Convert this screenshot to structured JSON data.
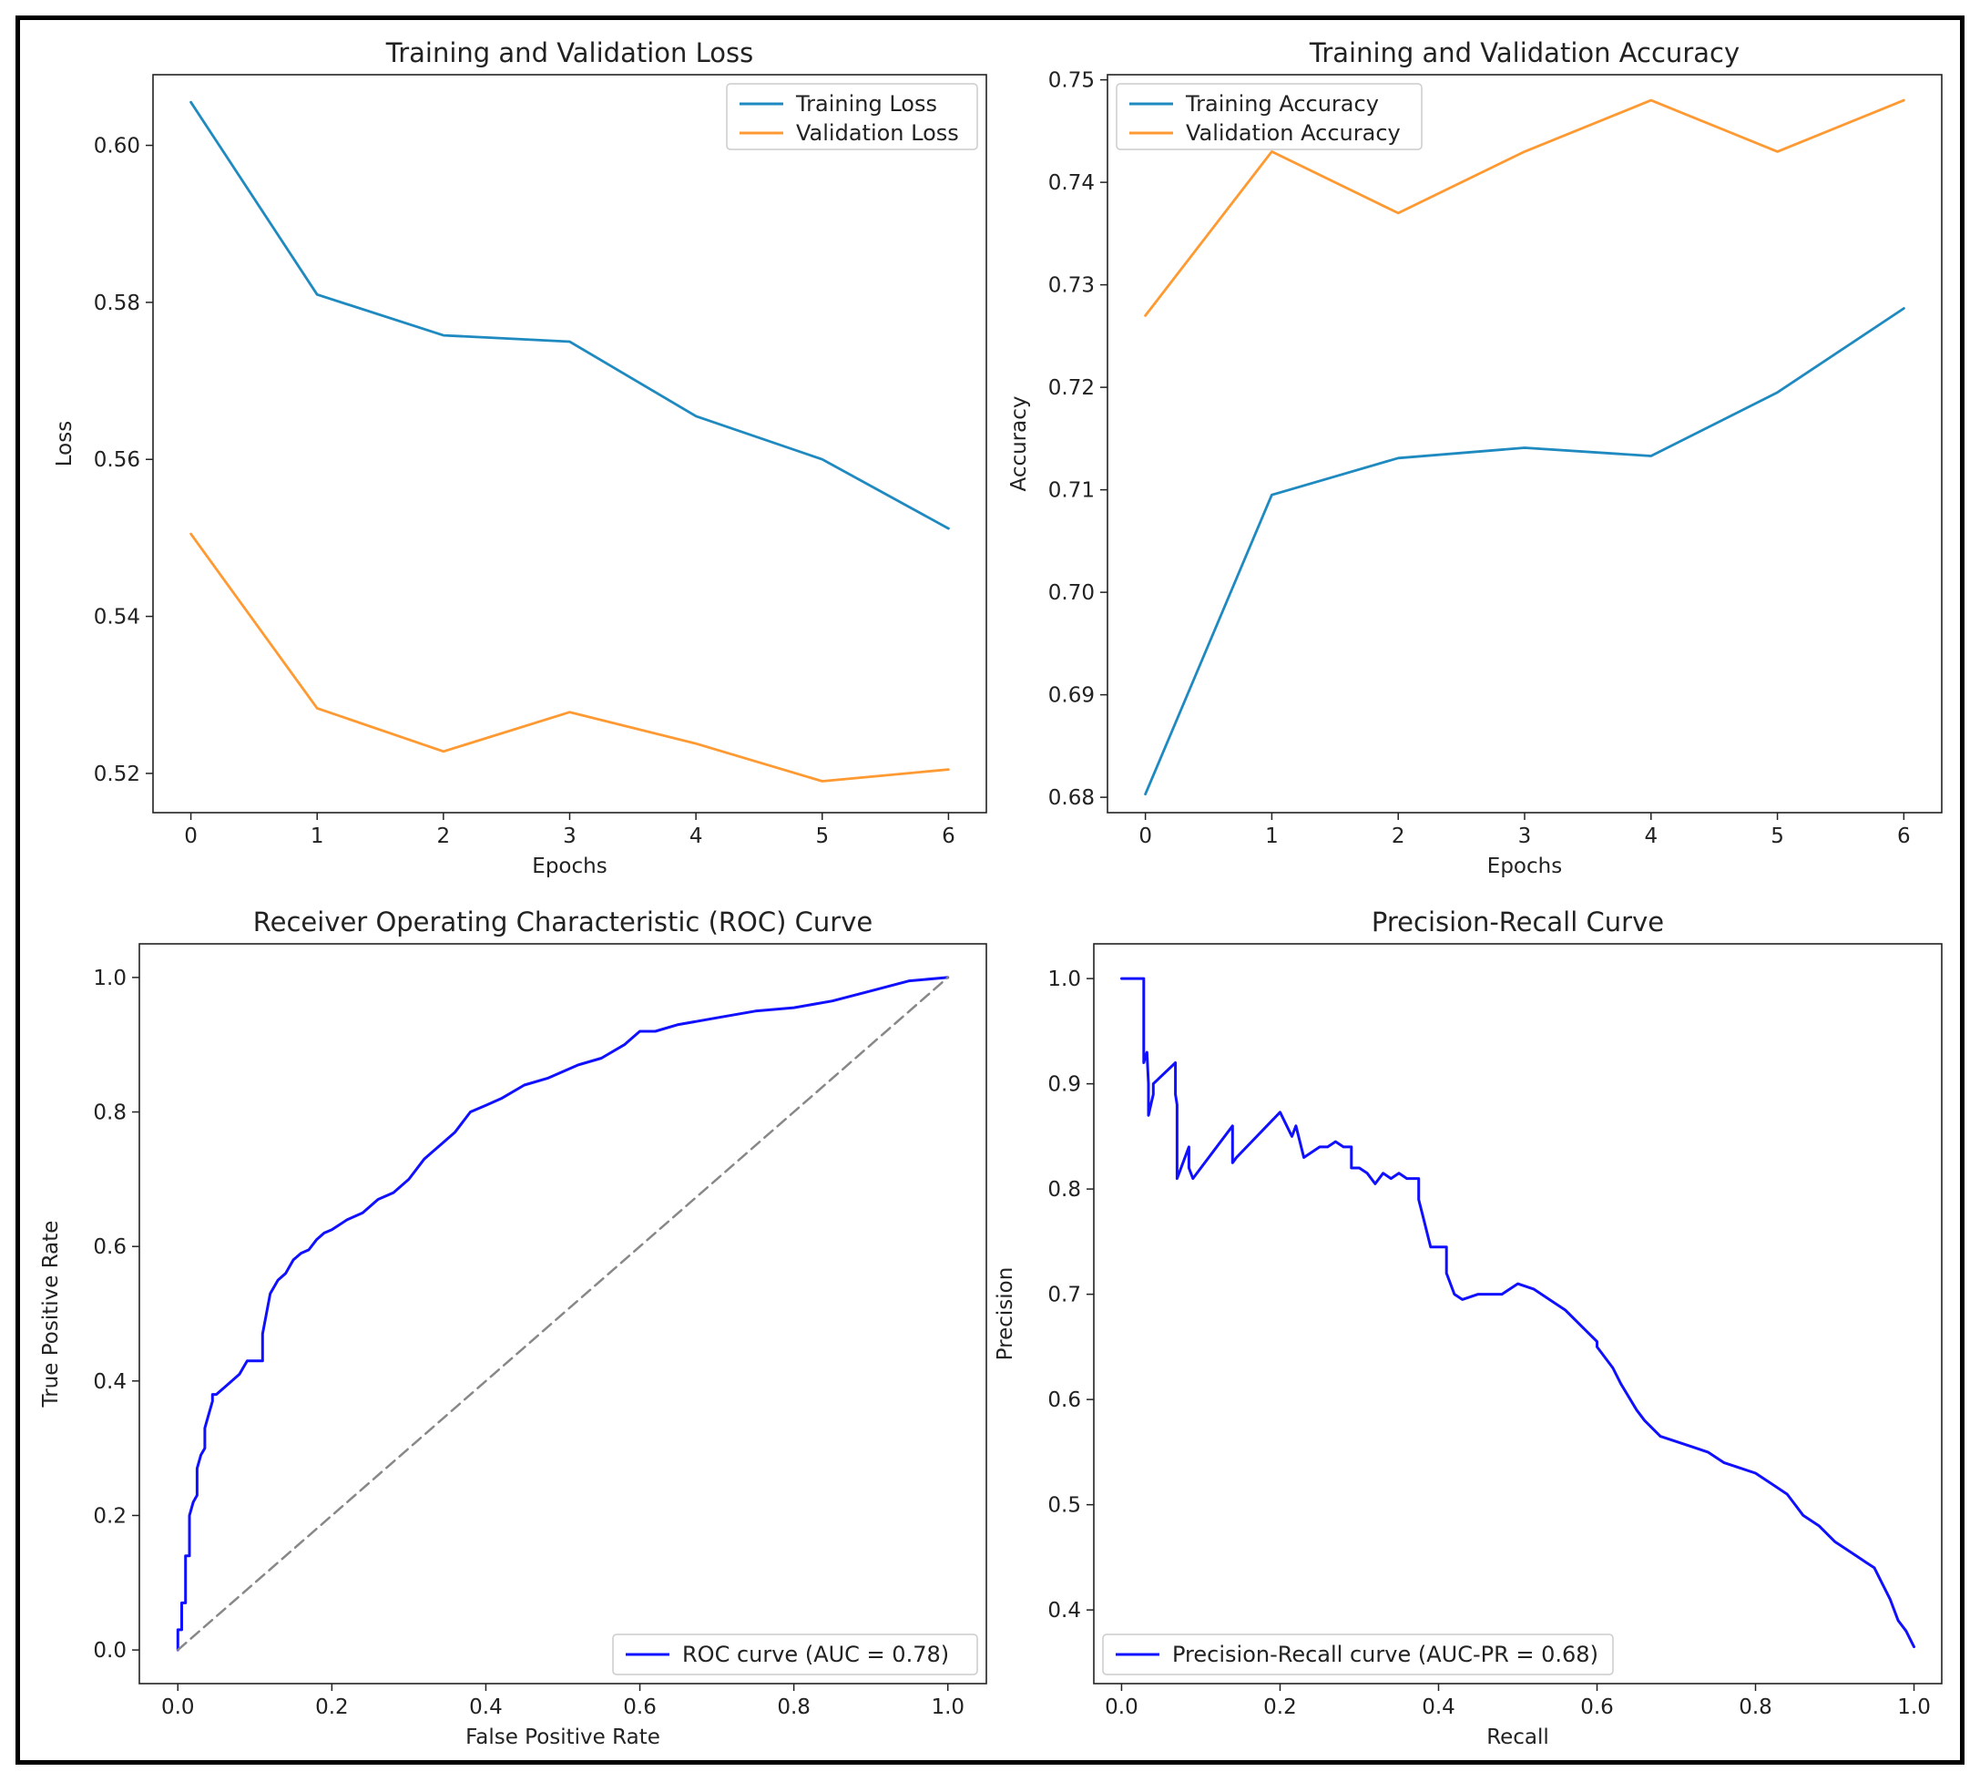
{
  "colors": {
    "train": "#1f8ac0",
    "val": "#ff9a33",
    "curve": "#1010ff",
    "diag": "#888888"
  },
  "chart_data": [
    {
      "type": "line",
      "title": "Training and Validation Loss",
      "xlabel": "Epochs",
      "ylabel": "Loss",
      "xlim": [
        -0.3,
        6.3
      ],
      "ylim": [
        0.515,
        0.609
      ],
      "xticks": [
        "0",
        "1",
        "2",
        "3",
        "4",
        "5",
        "6"
      ],
      "yticks": [
        "0.52",
        "0.54",
        "0.56",
        "0.58",
        "0.60"
      ],
      "legend_position": "top-right",
      "series": [
        {
          "name": "Training Loss",
          "x": [
            0,
            1,
            2,
            3,
            4,
            5,
            6
          ],
          "y": [
            0.6055,
            0.581,
            0.5758,
            0.575,
            0.5655,
            0.56,
            0.5512
          ]
        },
        {
          "name": "Validation Loss",
          "x": [
            0,
            1,
            2,
            3,
            4,
            5,
            6
          ],
          "y": [
            0.5505,
            0.5283,
            0.5228,
            0.5278,
            0.5238,
            0.519,
            0.5205
          ]
        }
      ]
    },
    {
      "type": "line",
      "title": "Training and Validation Accuracy",
      "xlabel": "Epochs",
      "ylabel": "Accuracy",
      "xlim": [
        -0.3,
        6.3
      ],
      "ylim": [
        0.6785,
        0.7505
      ],
      "xticks": [
        "0",
        "1",
        "2",
        "3",
        "4",
        "5",
        "6"
      ],
      "yticks": [
        "0.68",
        "0.69",
        "0.70",
        "0.71",
        "0.72",
        "0.73",
        "0.74",
        "0.75"
      ],
      "legend_position": "top-left",
      "series": [
        {
          "name": "Training Accuracy",
          "x": [
            0,
            1,
            2,
            3,
            4,
            5,
            6
          ],
          "y": [
            0.6803,
            0.7095,
            0.7131,
            0.7141,
            0.7133,
            0.7195,
            0.7277
          ]
        },
        {
          "name": "Validation Accuracy",
          "x": [
            0,
            1,
            2,
            3,
            4,
            5,
            6
          ],
          "y": [
            0.727,
            0.743,
            0.737,
            0.743,
            0.748,
            0.743,
            0.748
          ]
        }
      ]
    },
    {
      "type": "line",
      "title": "Receiver Operating Characteristic (ROC) Curve",
      "xlabel": "False Positive Rate",
      "ylabel": "True Positive Rate",
      "xlim": [
        -0.05,
        1.05
      ],
      "ylim": [
        -0.05,
        1.05
      ],
      "xticks": [
        "0.0",
        "0.2",
        "0.4",
        "0.6",
        "0.8",
        "1.0"
      ],
      "yticks": [
        "0.0",
        "0.2",
        "0.4",
        "0.6",
        "0.8",
        "1.0"
      ],
      "legend_position": "bottom-right",
      "series": [
        {
          "name": "ROC curve (AUC = 0.78)",
          "x": [
            0.0,
            0.0,
            0.005,
            0.005,
            0.01,
            0.01,
            0.015,
            0.015,
            0.02,
            0.025,
            0.025,
            0.03,
            0.035,
            0.035,
            0.04,
            0.045,
            0.045,
            0.05,
            0.06,
            0.07,
            0.08,
            0.085,
            0.09,
            0.1,
            0.11,
            0.11,
            0.115,
            0.12,
            0.13,
            0.14,
            0.15,
            0.16,
            0.17,
            0.18,
            0.19,
            0.2,
            0.22,
            0.24,
            0.26,
            0.28,
            0.3,
            0.32,
            0.33,
            0.34,
            0.36,
            0.38,
            0.4,
            0.42,
            0.45,
            0.48,
            0.5,
            0.52,
            0.55,
            0.58,
            0.6,
            0.62,
            0.65,
            0.7,
            0.75,
            0.8,
            0.85,
            0.9,
            0.95,
            1.0
          ],
          "y": [
            0.0,
            0.03,
            0.03,
            0.07,
            0.07,
            0.14,
            0.14,
            0.2,
            0.22,
            0.23,
            0.27,
            0.29,
            0.3,
            0.33,
            0.35,
            0.37,
            0.38,
            0.38,
            0.39,
            0.4,
            0.41,
            0.42,
            0.43,
            0.43,
            0.43,
            0.47,
            0.5,
            0.53,
            0.55,
            0.56,
            0.58,
            0.59,
            0.595,
            0.61,
            0.62,
            0.625,
            0.64,
            0.65,
            0.67,
            0.68,
            0.7,
            0.73,
            0.74,
            0.75,
            0.77,
            0.8,
            0.81,
            0.82,
            0.84,
            0.85,
            0.86,
            0.87,
            0.88,
            0.9,
            0.92,
            0.92,
            0.93,
            0.94,
            0.95,
            0.955,
            0.965,
            0.98,
            0.995,
            1.0
          ]
        },
        {
          "name": "chance",
          "x": [
            0.0,
            1.0
          ],
          "y": [
            0.0,
            1.0
          ]
        }
      ]
    },
    {
      "type": "line",
      "title": "Precision-Recall Curve",
      "xlabel": "Recall",
      "ylabel": "Precision",
      "xlim": [
        -0.035,
        1.035
      ],
      "ylim": [
        0.33,
        1.033
      ],
      "xticks": [
        "0.0",
        "0.2",
        "0.4",
        "0.6",
        "0.8",
        "1.0"
      ],
      "yticks": [
        "0.4",
        "0.5",
        "0.6",
        "0.7",
        "0.8",
        "0.9",
        "1.0"
      ],
      "legend_position": "bottom-left",
      "series": [
        {
          "name": "Precision-Recall curve (AUC-PR = 0.68)",
          "x": [
            0.0,
            0.028,
            0.028,
            0.032,
            0.034,
            0.034,
            0.037,
            0.04,
            0.04,
            0.068,
            0.068,
            0.07,
            0.07,
            0.085,
            0.085,
            0.09,
            0.1,
            0.14,
            0.14,
            0.145,
            0.2,
            0.215,
            0.22,
            0.23,
            0.25,
            0.26,
            0.27,
            0.28,
            0.29,
            0.29,
            0.3,
            0.31,
            0.32,
            0.33,
            0.34,
            0.35,
            0.36,
            0.375,
            0.375,
            0.38,
            0.39,
            0.41,
            0.41,
            0.42,
            0.43,
            0.45,
            0.48,
            0.5,
            0.52,
            0.55,
            0.56,
            0.58,
            0.6,
            0.6,
            0.62,
            0.63,
            0.65,
            0.66,
            0.68,
            0.7,
            0.72,
            0.74,
            0.76,
            0.78,
            0.8,
            0.82,
            0.84,
            0.85,
            0.86,
            0.88,
            0.9,
            0.92,
            0.93,
            0.94,
            0.95,
            0.96,
            0.97,
            0.98,
            0.99,
            1.0
          ],
          "y": [
            1.0,
            1.0,
            0.92,
            0.93,
            0.9,
            0.87,
            0.88,
            0.89,
            0.9,
            0.92,
            0.89,
            0.88,
            0.81,
            0.84,
            0.82,
            0.81,
            0.82,
            0.86,
            0.825,
            0.83,
            0.873,
            0.85,
            0.86,
            0.83,
            0.84,
            0.84,
            0.845,
            0.84,
            0.84,
            0.82,
            0.82,
            0.815,
            0.805,
            0.815,
            0.81,
            0.815,
            0.81,
            0.81,
            0.79,
            0.775,
            0.745,
            0.745,
            0.72,
            0.7,
            0.695,
            0.7,
            0.7,
            0.71,
            0.705,
            0.69,
            0.685,
            0.67,
            0.655,
            0.65,
            0.63,
            0.615,
            0.59,
            0.58,
            0.565,
            0.56,
            0.555,
            0.55,
            0.54,
            0.535,
            0.53,
            0.52,
            0.51,
            0.5,
            0.49,
            0.48,
            0.465,
            0.455,
            0.45,
            0.445,
            0.44,
            0.425,
            0.41,
            0.39,
            0.38,
            0.365
          ]
        }
      ]
    }
  ]
}
